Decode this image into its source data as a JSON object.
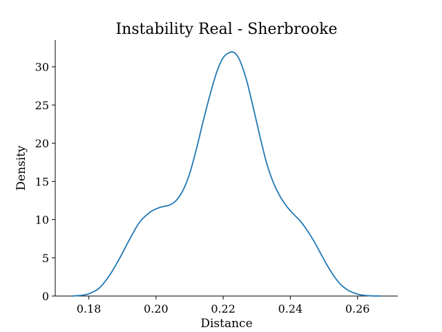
{
  "chart_data": {
    "type": "line",
    "title": "Instability Real - Sherbrooke",
    "xlabel": "Distance",
    "ylabel": "Density",
    "xlim": [
      0.17,
      0.272
    ],
    "ylim": [
      0,
      33.5
    ],
    "grid": false,
    "x_ticks": [
      {
        "value": 0.18,
        "label": "0.18"
      },
      {
        "value": 0.2,
        "label": "0.20"
      },
      {
        "value": 0.22,
        "label": "0.22"
      },
      {
        "value": 0.24,
        "label": "0.24"
      },
      {
        "value": 0.26,
        "label": "0.26"
      }
    ],
    "y_ticks": [
      {
        "value": 0,
        "label": "0"
      },
      {
        "value": 5,
        "label": "5"
      },
      {
        "value": 10,
        "label": "10"
      },
      {
        "value": 15,
        "label": "15"
      },
      {
        "value": 20,
        "label": "20"
      },
      {
        "value": 25,
        "label": "25"
      },
      {
        "value": 30,
        "label": "30"
      }
    ],
    "series": [
      {
        "color": "#1f77b4",
        "x": [
          0.175,
          0.178,
          0.18,
          0.183,
          0.186,
          0.189,
          0.192,
          0.195,
          0.198,
          0.2,
          0.202,
          0.204,
          0.206,
          0.208,
          0.21,
          0.212,
          0.214,
          0.216,
          0.218,
          0.22,
          0.222,
          0.2235,
          0.225,
          0.227,
          0.229,
          0.231,
          0.233,
          0.235,
          0.237,
          0.239,
          0.241,
          0.243,
          0.245,
          0.247,
          0.249,
          0.251,
          0.253,
          0.255,
          0.257,
          0.259,
          0.261,
          0.264,
          0.267
        ],
        "y": [
          0.0,
          0.1,
          0.3,
          1.0,
          2.6,
          4.8,
          7.3,
          9.6,
          10.9,
          11.4,
          11.7,
          11.9,
          12.5,
          13.8,
          16.0,
          19.2,
          22.8,
          26.2,
          29.2,
          31.2,
          31.9,
          31.8,
          30.8,
          28.2,
          24.6,
          20.8,
          17.3,
          14.8,
          13.0,
          11.7,
          10.7,
          9.8,
          8.6,
          7.2,
          5.6,
          4.0,
          2.6,
          1.5,
          0.8,
          0.4,
          0.15,
          0.03,
          0.0
        ]
      }
    ]
  }
}
